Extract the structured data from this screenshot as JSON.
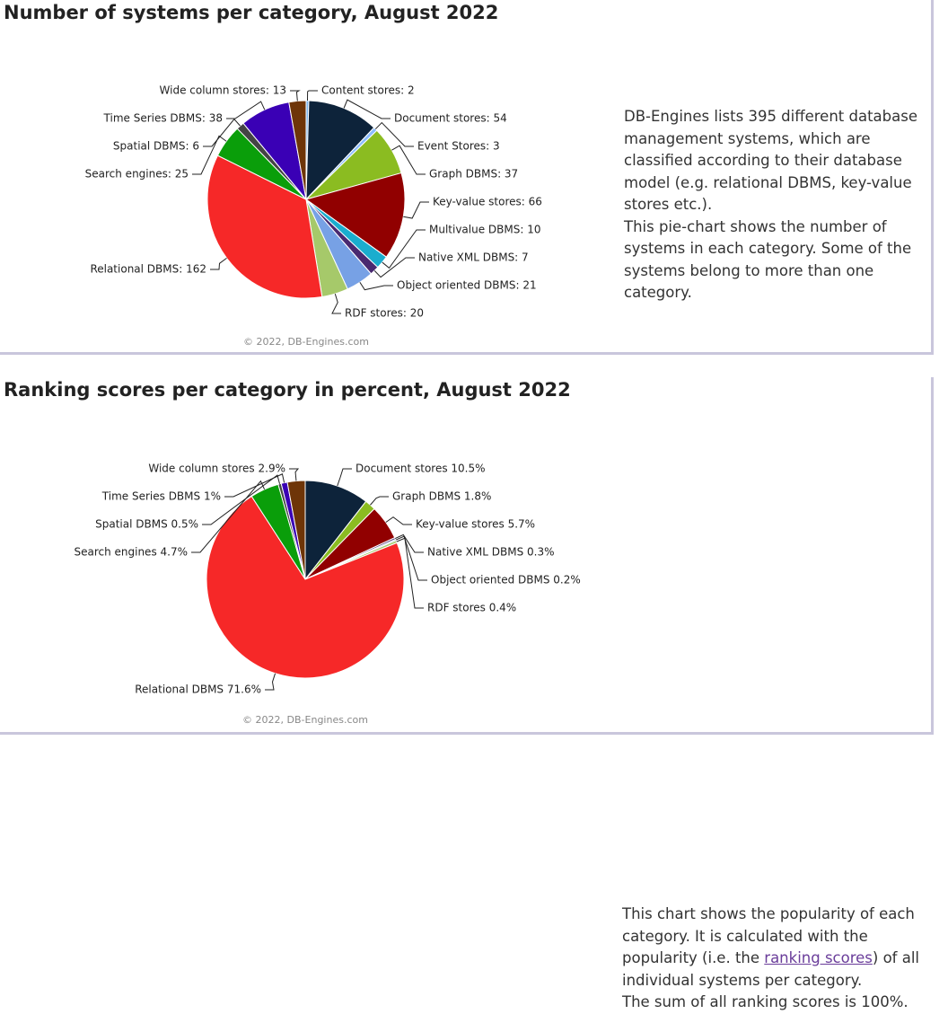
{
  "chart_data": [
    {
      "type": "pie",
      "title": "Number of systems per category, August 2022",
      "labels": [
        "Content stores: 2",
        "Document stores: 54",
        "Event Stores: 3",
        "Graph DBMS: 37",
        "Key-value stores: 66",
        "Multivalue DBMS: 10",
        "Native XML DBMS: 7",
        "Object oriented DBMS: 21",
        "RDF stores: 20",
        "Relational DBMS: 162",
        "Search engines: 25",
        "Spatial DBMS: 6",
        "Time Series DBMS: 38",
        "Wide column stores: 13"
      ],
      "values": [
        2,
        54,
        3,
        37,
        66,
        10,
        7,
        21,
        20,
        162,
        25,
        6,
        38,
        13
      ],
      "colors": [
        "#7cb5ec",
        "#0d233a",
        "#8bbcff",
        "#8bbc21",
        "#910000",
        "#1aadce",
        "#492970",
        "#77a1e5",
        "#a6c96a",
        "#f62828",
        "#0a9e0a",
        "#444444",
        "#3a00b5",
        "#6e3508"
      ],
      "credit": "© 2022, DB-Engines.com"
    },
    {
      "type": "pie",
      "title": "Ranking scores per category in percent, August 2022",
      "labels": [
        "Document stores 10.5%",
        "Graph DBMS 1.8%",
        "Key-value stores 5.7%",
        "Native XML DBMS 0.3%",
        "Object oriented DBMS 0.2%",
        "RDF stores 0.4%",
        "Relational DBMS 71.6%",
        "Search engines 4.7%",
        "Spatial DBMS 0.5%",
        "Time Series DBMS 1%",
        "Wide column stores 2.9%"
      ],
      "values": [
        10.5,
        1.8,
        5.7,
        0.3,
        0.2,
        0.4,
        71.6,
        4.7,
        0.5,
        1,
        2.9
      ],
      "colors": [
        "#0d233a",
        "#8bbc21",
        "#910000",
        "#492970",
        "#77a1e5",
        "#a6c96a",
        "#f62828",
        "#0a9e0a",
        "#444444",
        "#3a00b5",
        "#6e3508"
      ],
      "credit": "© 2022, DB-Engines.com"
    }
  ],
  "descriptions": [
    {
      "lines": [
        "DB-Engines lists 395 different database management systems, which are classified according to their database model (e.g. relational DBMS, key-value stores etc.).",
        "This pie-chart shows the number of systems in each category. Some of the systems belong to more than one category."
      ]
    },
    {
      "before_link": "This chart shows the popularity of each category. It is calculated with the popularity (i.e. the ",
      "link": "ranking scores",
      "after_link": ") of all individual systems per category.",
      "last_line": "The sum of all ranking scores is 100%."
    }
  ]
}
